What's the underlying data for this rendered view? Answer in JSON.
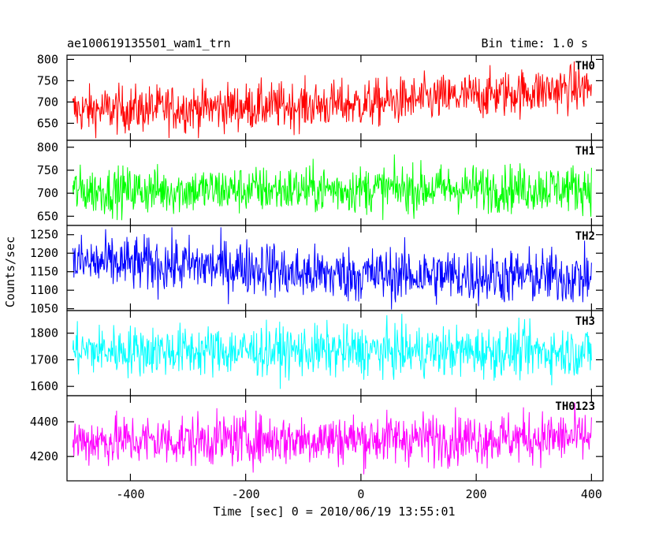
{
  "header": {
    "title": "ae100619135501_wam1_trn",
    "bin_time": "Bin time: 1.0 s"
  },
  "chart_data": {
    "type": "line",
    "xlabel": "Time [sec] 0 = 2010/06/19 13:55:01",
    "ylabel": "Counts/sec",
    "xlim": [
      -510,
      420
    ],
    "x_range": [
      -500,
      400
    ],
    "x_step": 1,
    "xticks": [
      -400,
      -200,
      0,
      200,
      400
    ],
    "grid": false,
    "panels": [
      {
        "name": "TH0",
        "color": "#ff0000",
        "ylim": [
          610,
          810
        ],
        "yticks": [
          650,
          700,
          750,
          800
        ],
        "trend": [
          [
            -500,
            680
          ],
          [
            0,
            695
          ],
          [
            400,
            735
          ]
        ],
        "noise": 28,
        "value_range": [
          615,
          810
        ]
      },
      {
        "name": "TH1",
        "color": "#00ff00",
        "ylim": [
          630,
          815
        ],
        "yticks": [
          650,
          700,
          750,
          800
        ],
        "trend": [
          [
            -500,
            705
          ],
          [
            400,
            712
          ]
        ],
        "noise": 26,
        "value_range": [
          635,
          810
        ]
      },
      {
        "name": "TH2",
        "color": "#0000ff",
        "ylim": [
          1045,
          1275
        ],
        "yticks": [
          1050,
          1100,
          1150,
          1200,
          1250
        ],
        "trend": [
          [
            -500,
            1175
          ],
          [
            -140,
            1160
          ],
          [
            -140,
            1145
          ],
          [
            400,
            1135
          ]
        ],
        "noise": 38,
        "value_range": [
          1048,
          1270
        ]
      },
      {
        "name": "TH3",
        "color": "#00ffff",
        "ylim": [
          1565,
          1885
        ],
        "yticks": [
          1600,
          1700,
          1800
        ],
        "trend": [
          [
            -500,
            1735
          ],
          [
            400,
            1730
          ]
        ],
        "noise": 48,
        "value_range": [
          1570,
          1880
        ]
      },
      {
        "name": "TH0123",
        "color": "#ff00ff",
        "ylim": [
          4060,
          4550
        ],
        "yticks": [
          4200,
          4400
        ],
        "trend": [
          [
            -500,
            4290
          ],
          [
            400,
            4310
          ]
        ],
        "noise": 75,
        "value_range": [
          4070,
          4545
        ]
      }
    ]
  }
}
